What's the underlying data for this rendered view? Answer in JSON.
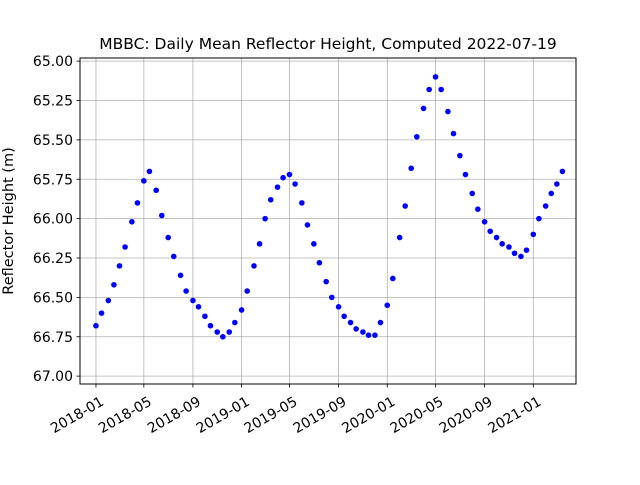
{
  "chart_data": {
    "type": "scatter",
    "title": "MBBC: Daily Mean Reflector Height, Computed 2022-07-19",
    "xlabel": "",
    "ylabel": "Reflector Height (m)",
    "xlim": [
      "2017-11-22",
      "2021-04-18"
    ],
    "ylim": [
      67.05,
      64.98
    ],
    "y_inverted": true,
    "grid": true,
    "marker_color": "#0000ff",
    "x_ticks": [
      "2018-01-01",
      "2018-05-01",
      "2018-09-01",
      "2019-01-01",
      "2019-05-01",
      "2019-09-01",
      "2020-01-01",
      "2020-05-01",
      "2020-09-01",
      "2021-01-01"
    ],
    "x_tick_labels": [
      "2018-01",
      "2018-05",
      "2018-09",
      "2019-01",
      "2019-05",
      "2019-09",
      "2020-01",
      "2020-05",
      "2020-09",
      "2021-01"
    ],
    "y_ticks": [
      65.0,
      65.25,
      65.5,
      65.75,
      66.0,
      66.25,
      66.5,
      66.75,
      67.0
    ],
    "y_tick_labels": [
      "65.00",
      "65.25",
      "65.50",
      "65.75",
      "66.00",
      "66.25",
      "66.50",
      "66.75",
      "67.00"
    ],
    "series": [
      {
        "x": [
          "2018-01-01",
          "2018-01-15",
          "2018-02-01",
          "2018-02-15",
          "2018-03-01",
          "2018-03-15",
          "2018-04-01",
          "2018-04-15",
          "2018-05-01",
          "2018-05-15",
          "2018-06-01",
          "2018-06-15",
          "2018-07-01",
          "2018-07-15",
          "2018-08-01",
          "2018-08-15",
          "2018-09-01",
          "2018-09-15",
          "2018-10-01",
          "2018-10-15",
          "2018-11-01",
          "2018-11-15",
          "2018-12-01",
          "2018-12-15",
          "2019-01-01",
          "2019-01-15",
          "2019-02-01",
          "2019-02-15",
          "2019-03-01",
          "2019-03-15",
          "2019-04-01",
          "2019-04-15",
          "2019-05-01",
          "2019-05-15",
          "2019-06-01",
          "2019-06-15",
          "2019-07-01",
          "2019-07-15",
          "2019-08-01",
          "2019-08-15",
          "2019-09-01",
          "2019-09-15",
          "2019-10-01",
          "2019-10-15",
          "2019-11-01",
          "2019-11-15",
          "2019-12-01",
          "2019-12-15",
          "2020-01-01",
          "2020-01-15",
          "2020-02-01",
          "2020-02-15",
          "2020-03-01",
          "2020-03-15",
          "2020-04-01",
          "2020-04-15",
          "2020-05-01",
          "2020-05-15",
          "2020-06-01",
          "2020-06-15",
          "2020-07-01",
          "2020-07-15",
          "2020-08-01",
          "2020-08-15",
          "2020-09-01",
          "2020-09-15",
          "2020-10-01",
          "2020-10-15",
          "2020-11-01",
          "2020-11-15",
          "2020-12-01",
          "2020-12-15",
          "2021-01-01",
          "2021-01-15",
          "2021-02-01",
          "2021-02-15",
          "2021-03-01",
          "2021-03-15"
        ],
        "y": [
          66.68,
          66.6,
          66.52,
          66.42,
          66.3,
          66.18,
          66.02,
          65.9,
          65.76,
          65.7,
          65.82,
          65.98,
          66.12,
          66.24,
          66.36,
          66.46,
          66.52,
          66.56,
          66.62,
          66.68,
          66.72,
          66.75,
          66.72,
          66.66,
          66.58,
          66.46,
          66.3,
          66.16,
          66.0,
          65.88,
          65.8,
          65.74,
          65.72,
          65.78,
          65.9,
          66.04,
          66.16,
          66.28,
          66.4,
          66.5,
          66.56,
          66.62,
          66.66,
          66.7,
          66.72,
          66.74,
          66.74,
          66.66,
          66.55,
          66.38,
          66.12,
          65.92,
          65.68,
          65.48,
          65.3,
          65.18,
          65.1,
          65.18,
          65.32,
          65.46,
          65.6,
          65.72,
          65.84,
          65.94,
          66.02,
          66.08,
          66.12,
          66.16,
          66.18,
          66.22,
          66.24,
          66.2,
          66.1,
          66.0,
          65.92,
          65.84,
          65.78,
          65.7
        ]
      }
    ]
  }
}
